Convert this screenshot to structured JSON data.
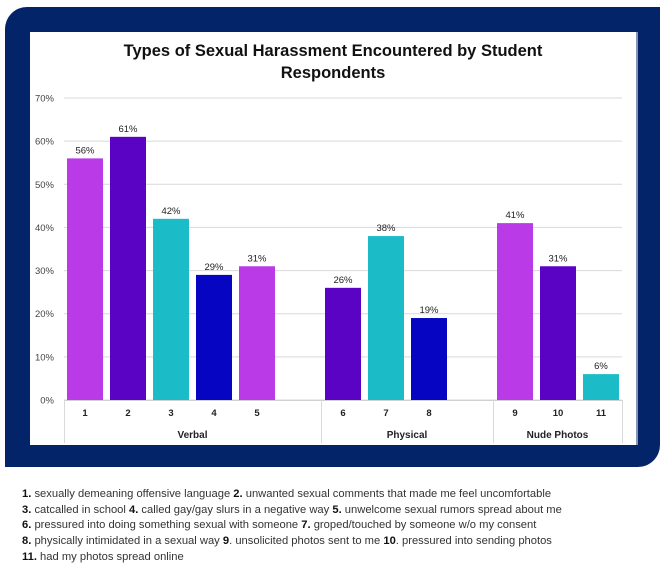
{
  "chart_data": {
    "type": "bar",
    "title": "Types of Sexual Harassment Encountered by Student Respondents",
    "title_lines": [
      "Types of Sexual Harassment Encountered by Student",
      "Respondents"
    ],
    "xlabel": "",
    "ylabel": "",
    "ylim": [
      0,
      70
    ],
    "yticks": [
      0,
      10,
      20,
      30,
      40,
      50,
      60,
      70
    ],
    "ytick_labels": [
      "0%",
      "10%",
      "20%",
      "30%",
      "40%",
      "50%",
      "60%",
      "70%"
    ],
    "grid": true,
    "legend": "none",
    "groups": [
      {
        "name": "Verbal",
        "categories": [
          "1",
          "2",
          "3",
          "4",
          "5"
        ],
        "values": [
          56,
          61,
          42,
          29,
          31
        ],
        "labels": [
          "56%",
          "61%",
          "42%",
          "29%",
          "31%"
        ],
        "colors": [
          "#bb3ae8",
          "#5b03c4",
          "#1bbcc8",
          "#0505c2",
          "#bb3ae8"
        ]
      },
      {
        "name": "Physical",
        "categories": [
          "6",
          "7",
          "8"
        ],
        "values": [
          26,
          38,
          19
        ],
        "labels": [
          "26%",
          "38%",
          "19%"
        ],
        "colors": [
          "#5b03c4",
          "#1bbcc8",
          "#0505c2"
        ]
      },
      {
        "name": "Nude Photos",
        "categories": [
          "9",
          "10",
          "11"
        ],
        "values": [
          41,
          31,
          6
        ],
        "labels": [
          "41%",
          "31%",
          "6%"
        ],
        "colors": [
          "#bb3ae8",
          "#5b03c4",
          "#1bbcc8"
        ]
      }
    ]
  },
  "footnotes": [
    [
      {
        "num": "1.",
        "text": " sexually demeaning offensive language "
      },
      {
        "num": "2.",
        "text": " unwanted sexual comments that made me feel uncomfortable"
      }
    ],
    [
      {
        "num": "3.",
        "text": " catcalled in school  "
      },
      {
        "num": "4.",
        "text": " called gay/gay slurs in a negative way "
      },
      {
        "num": "5.",
        "text": " unwelcome sexual rumors spread about me"
      }
    ],
    [
      {
        "num": "6.",
        "text": " pressured into doing something sexual with someone "
      },
      {
        "num": "7.",
        "text": " groped/touched by someone w/o my consent"
      }
    ],
    [
      {
        "num": "8.",
        "text": " physically intimidated in a sexual way "
      },
      {
        "num": "9",
        "text": ". unsolicited photos sent to me "
      },
      {
        "num": "10",
        "text": ". pressured into sending photos"
      }
    ],
    [
      {
        "num": "11.",
        "text": " had my photos spread online"
      }
    ]
  ],
  "colors": {
    "frame": "#04246a",
    "grid": "#d9d9d9"
  }
}
